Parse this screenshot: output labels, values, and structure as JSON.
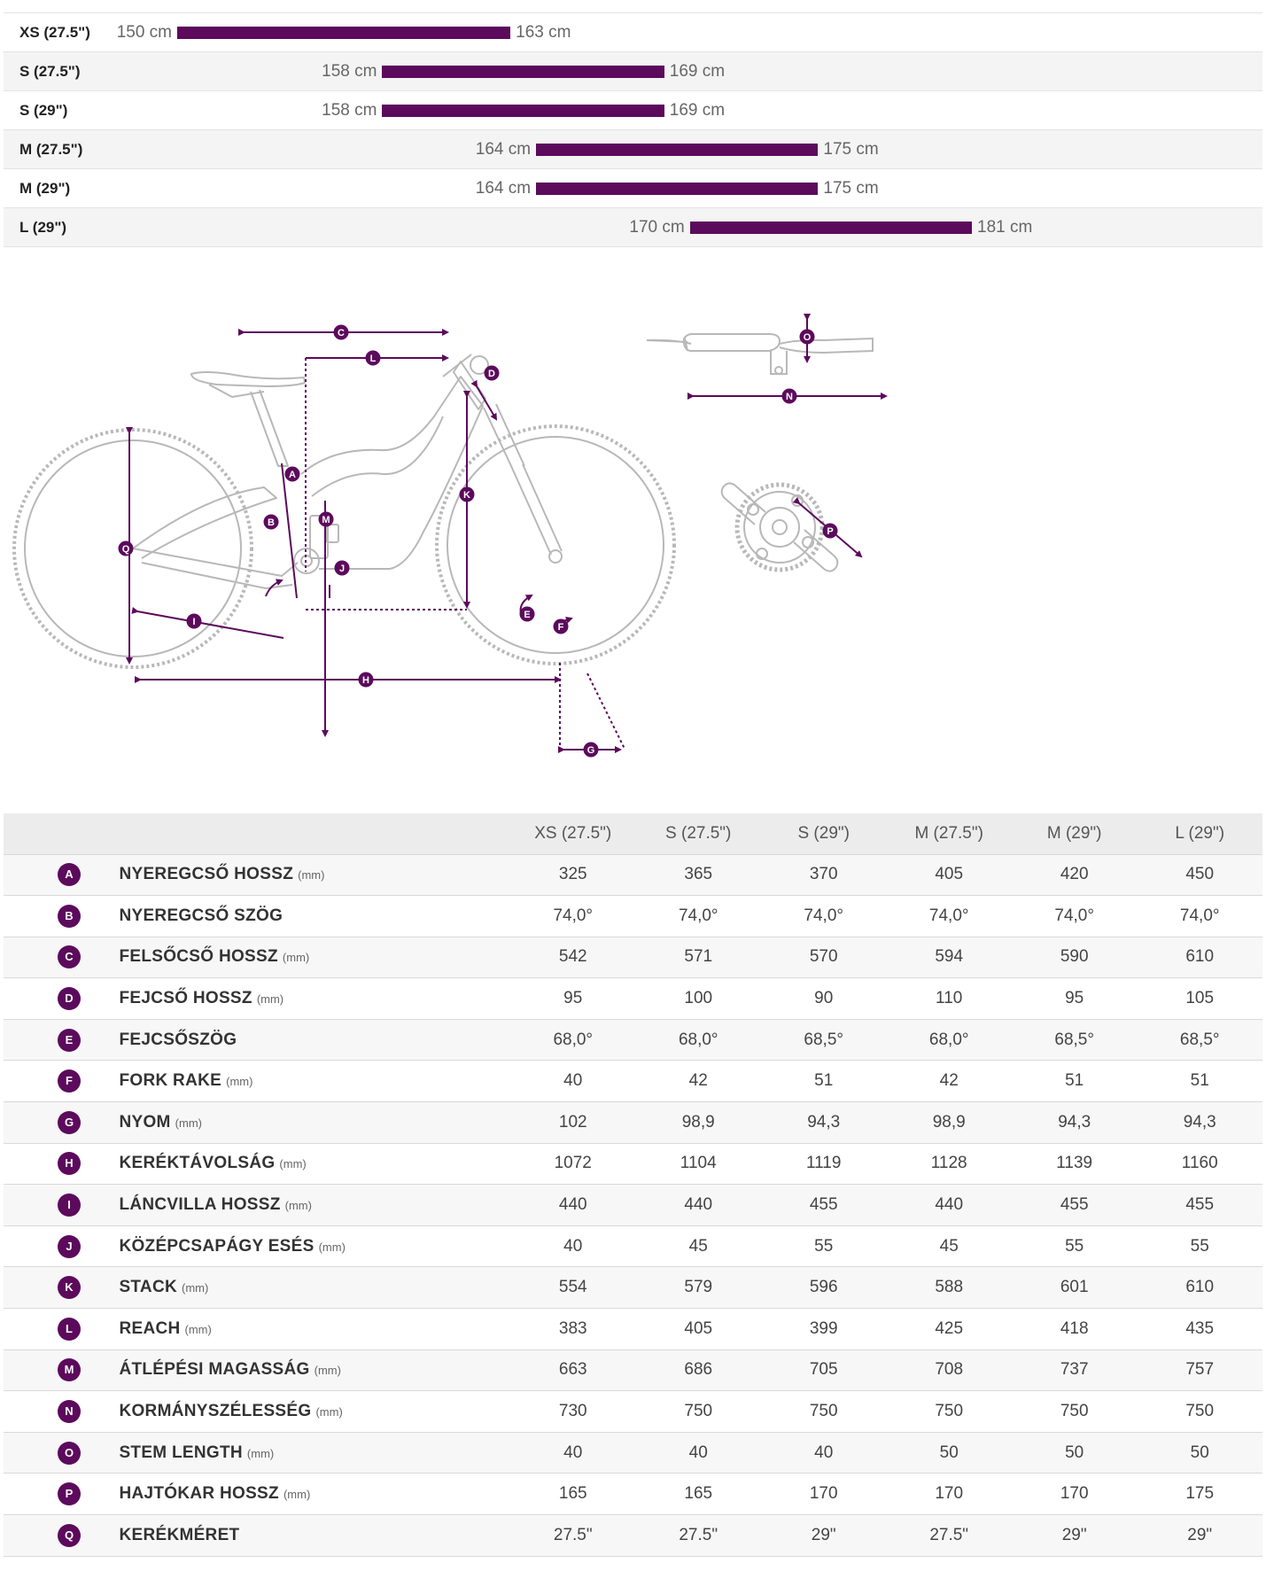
{
  "colors": {
    "accent": "#5c0a5c",
    "bike_line": "#b8b8b8",
    "label_text": "#ffffff"
  },
  "size_ranges": {
    "scale_min_cm": 150,
    "scale_max_cm": 181,
    "rows": [
      {
        "size": "XS (27.5\")",
        "min": 150,
        "max": 163,
        "min_label": "150 cm",
        "max_label": "163 cm"
      },
      {
        "size": "S (27.5\")",
        "min": 158,
        "max": 169,
        "min_label": "158 cm",
        "max_label": "169 cm"
      },
      {
        "size": "S (29\")",
        "min": 158,
        "max": 169,
        "min_label": "158 cm",
        "max_label": "169 cm"
      },
      {
        "size": "M (27.5\")",
        "min": 164,
        "max": 175,
        "min_label": "164 cm",
        "max_label": "175 cm"
      },
      {
        "size": "M (29\")",
        "min": 164,
        "max": 175,
        "min_label": "164 cm",
        "max_label": "175 cm"
      },
      {
        "size": "L (29\")",
        "min": 170,
        "max": 181,
        "min_label": "170 cm",
        "max_label": "181 cm"
      }
    ]
  },
  "diagram": {
    "labels": [
      "A",
      "B",
      "C",
      "D",
      "E",
      "F",
      "G",
      "H",
      "I",
      "J",
      "K",
      "L",
      "M",
      "N",
      "O",
      "P",
      "Q"
    ]
  },
  "geometry": {
    "sizes": [
      "XS (27.5\")",
      "S (27.5\")",
      "S (29\")",
      "M (27.5\")",
      "M (29\")",
      "L (29\")"
    ],
    "rows": [
      {
        "key": "A",
        "name": "NYEREGCSŐ HOSSZ",
        "unit": "(mm)",
        "values": [
          "325",
          "365",
          "370",
          "405",
          "420",
          "450"
        ]
      },
      {
        "key": "B",
        "name": "NYEREGCSŐ SZÖG",
        "unit": "",
        "values": [
          "74,0°",
          "74,0°",
          "74,0°",
          "74,0°",
          "74,0°",
          "74,0°"
        ]
      },
      {
        "key": "C",
        "name": "FELSŐCSŐ HOSSZ",
        "unit": "(mm)",
        "values": [
          "542",
          "571",
          "570",
          "594",
          "590",
          "610"
        ]
      },
      {
        "key": "D",
        "name": "FEJCSŐ HOSSZ",
        "unit": "(mm)",
        "values": [
          "95",
          "100",
          "90",
          "110",
          "95",
          "105"
        ]
      },
      {
        "key": "E",
        "name": "FEJCSŐSZÖG",
        "unit": "",
        "values": [
          "68,0°",
          "68,0°",
          "68,5°",
          "68,0°",
          "68,5°",
          "68,5°"
        ]
      },
      {
        "key": "F",
        "name": "FORK RAKE",
        "unit": "(mm)",
        "values": [
          "40",
          "42",
          "51",
          "42",
          "51",
          "51"
        ]
      },
      {
        "key": "G",
        "name": "NYOM",
        "unit": "(mm)",
        "values": [
          "102",
          "98,9",
          "94,3",
          "98,9",
          "94,3",
          "94,3"
        ]
      },
      {
        "key": "H",
        "name": "KERÉKTÁVOLSÁG",
        "unit": "(mm)",
        "values": [
          "1072",
          "1104",
          "1119",
          "1128",
          "1139",
          "1160"
        ]
      },
      {
        "key": "I",
        "name": "LÁNCVILLA HOSSZ",
        "unit": "(mm)",
        "values": [
          "440",
          "440",
          "455",
          "440",
          "455",
          "455"
        ]
      },
      {
        "key": "J",
        "name": "KÖZÉPCSAPÁGY ESÉS",
        "unit": "(mm)",
        "values": [
          "40",
          "45",
          "55",
          "45",
          "55",
          "55"
        ]
      },
      {
        "key": "K",
        "name": "STACK",
        "unit": "(mm)",
        "values": [
          "554",
          "579",
          "596",
          "588",
          "601",
          "610"
        ]
      },
      {
        "key": "L",
        "name": "REACH",
        "unit": "(mm)",
        "values": [
          "383",
          "405",
          "399",
          "425",
          "418",
          "435"
        ]
      },
      {
        "key": "M",
        "name": "ÁTLÉPÉSI MAGASSÁG",
        "unit": "(mm)",
        "values": [
          "663",
          "686",
          "705",
          "708",
          "737",
          "757"
        ]
      },
      {
        "key": "N",
        "name": "KORMÁNYSZÉLESSÉG",
        "unit": "(mm)",
        "values": [
          "730",
          "750",
          "750",
          "750",
          "750",
          "750"
        ]
      },
      {
        "key": "O",
        "name": "STEM LENGTH",
        "unit": "(mm)",
        "values": [
          "40",
          "40",
          "40",
          "50",
          "50",
          "50"
        ]
      },
      {
        "key": "P",
        "name": "HAJTÓKAR HOSSZ",
        "unit": "(mm)",
        "values": [
          "165",
          "165",
          "170",
          "170",
          "170",
          "175"
        ]
      },
      {
        "key": "Q",
        "name": "KERÉKMÉRET",
        "unit": "",
        "values": [
          "27.5\"",
          "27.5\"",
          "29\"",
          "27.5\"",
          "29\"",
          "29\""
        ]
      }
    ]
  }
}
